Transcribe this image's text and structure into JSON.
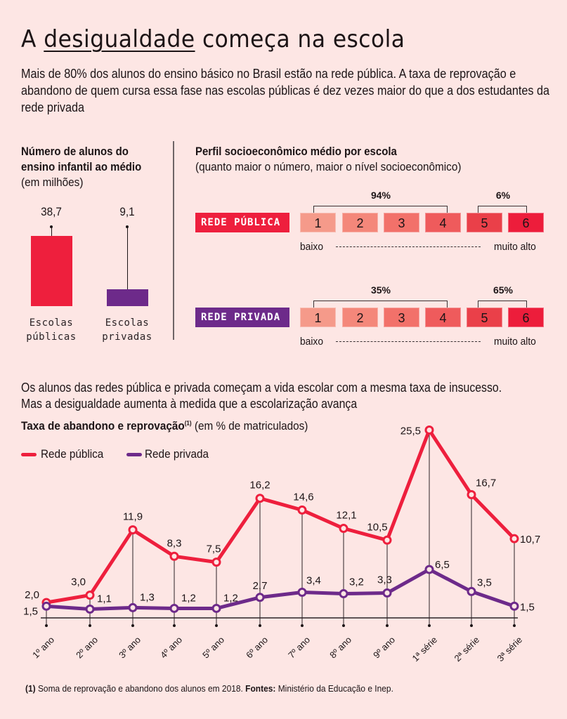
{
  "header": {
    "title_before": "A ",
    "title_underlined": "desigualdade",
    "title_after": " começa na escola",
    "intro": "Mais de 80% dos alunos do ensino básico no Brasil estão na rede pública. A taxa de reprovação e abandono de quem cursa essa fase nas escolas públicas é dez vezes maior do que a dos estudantes da rede privada"
  },
  "colors": {
    "background": "#fde6e4",
    "public": "#ee1f3d",
    "private": "#6d2a8a",
    "scale": [
      "#f59a8a",
      "#f4877a",
      "#f2716a",
      "#ef5b5c",
      "#ea4049",
      "#ed1d3b"
    ]
  },
  "students": {
    "title_line1": "Número de alunos do",
    "title_line2": "ensino infantil ao médio",
    "subtitle": "(em milhões)",
    "bars": [
      {
        "label_line1": "Escolas",
        "label_line2": "públicas",
        "value": 38.7,
        "value_label": "38,7"
      },
      {
        "label_line1": "Escolas",
        "label_line2": "privadas",
        "value": 9.1,
        "value_label": "9,1"
      }
    ]
  },
  "profile": {
    "title": "Perfil socioeconômico médio por escola",
    "subtitle": "(quanto maior o número, maior o nível socioeconômico)",
    "levels": [
      "1",
      "2",
      "3",
      "4",
      "5",
      "6"
    ],
    "low_label": "baixo",
    "high_label": "muito alto",
    "arrow": "‹- - - - - - - - - - - - - - - - - - - - - - - ›",
    "rows": [
      {
        "name": "REDE PÚBLICA",
        "group_low_pct": "94%",
        "group_high_pct": "6%"
      },
      {
        "name": "REDE PRIVADA",
        "group_low_pct": "35%",
        "group_high_pct": "65%"
      }
    ]
  },
  "rates": {
    "intro_line1": "Os alunos das redes pública e privada começam a vida escolar com a mesma taxa de insucesso.",
    "intro_line2": "Mas a desigualdade aumenta à medida que a escolarização avança",
    "title_bold": "Taxa de abandono e reprovação",
    "title_sup": "(1)",
    "title_rest": " (em % de matriculados)",
    "legend": [
      {
        "name": "Rede pública"
      },
      {
        "name": "Rede privada"
      }
    ]
  },
  "chart_data": [
    {
      "type": "bar",
      "title": "Número de alunos do ensino infantil ao médio",
      "ylabel": "em milhões",
      "categories": [
        "Escolas públicas",
        "Escolas privadas"
      ],
      "values": [
        38.7,
        9.1
      ],
      "value_labels": [
        "38,7",
        "9,1"
      ]
    },
    {
      "type": "line",
      "title": "Taxa de abandono e reprovação (em % de matriculados)",
      "categories": [
        "1º ano",
        "2º ano",
        "3º ano",
        "4º ano",
        "5º ano",
        "6º ano",
        "7º ano",
        "8º ano",
        "9º ano",
        "1ª série",
        "2ª série",
        "3ª série"
      ],
      "series": [
        {
          "name": "Rede pública",
          "values": [
            2.0,
            3.0,
            11.9,
            8.3,
            7.5,
            16.2,
            14.6,
            12.1,
            10.5,
            25.5,
            16.7,
            10.7
          ],
          "labels": [
            "2,0",
            "3,0",
            "11,9",
            "8,3",
            "7,5",
            "16,2",
            "14,6",
            "12,1",
            "10,5",
            "25,5",
            "16,7",
            "10,7"
          ]
        },
        {
          "name": "Rede privada",
          "values": [
            1.5,
            1.1,
            1.3,
            1.2,
            1.2,
            2.7,
            3.4,
            3.2,
            3.3,
            6.5,
            3.5,
            1.5
          ],
          "labels": [
            "1,5",
            "1,1",
            "1,3",
            "1,2",
            "1,2",
            "2,7",
            "3,4",
            "3,2",
            "3,3",
            "6,5",
            "3,5",
            "1,5"
          ]
        }
      ],
      "ylim": [
        0,
        26
      ],
      "grid": false,
      "legend": "top-left"
    }
  ],
  "footer": {
    "note_marker": "(1)",
    "note": " Soma de reprovação e abandono dos alunos em 2018. ",
    "sources_label": "Fontes:",
    "sources": " Ministério da Educação e Inep."
  }
}
